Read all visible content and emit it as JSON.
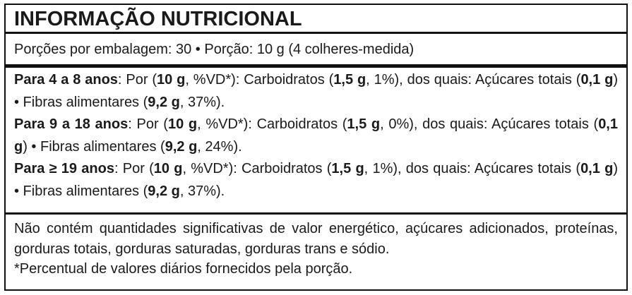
{
  "title": "INFORMAÇÃO NUTRICIONAL",
  "serving": "Porções por embalagem: 30 • Porção: 10 g (4 colheres-medida)",
  "groups": [
    {
      "segments": [
        {
          "text": "Para 4 a 8 anos",
          "bold": true
        },
        {
          "text": ": Por (",
          "bold": false
        },
        {
          "text": "10 g",
          "bold": true
        },
        {
          "text": ", %VD*): Carboidratos (",
          "bold": false
        },
        {
          "text": "1,5 g",
          "bold": true
        },
        {
          "text": ", 1%), dos quais: Açúcares totais (",
          "bold": false
        },
        {
          "text": "0,1 g",
          "bold": true
        },
        {
          "text": ") • Fibras alimentares (",
          "bold": false
        },
        {
          "text": "9,2 g",
          "bold": true
        },
        {
          "text": ", 37%).",
          "bold": false
        }
      ]
    },
    {
      "segments": [
        {
          "text": "Para 9 a 18 anos",
          "bold": true
        },
        {
          "text": ": Por (",
          "bold": false
        },
        {
          "text": "10 g",
          "bold": true
        },
        {
          "text": ", %VD*): Carboidratos (",
          "bold": false
        },
        {
          "text": "1,5 g",
          "bold": true
        },
        {
          "text": ", 0%), dos quais: Açúcares totais (",
          "bold": false
        },
        {
          "text": "0,1 g",
          "bold": true
        },
        {
          "text": ") • Fibras alimentares (",
          "bold": false
        },
        {
          "text": "9,2 g",
          "bold": true
        },
        {
          "text": ", 24%).",
          "bold": false
        }
      ]
    },
    {
      "segments": [
        {
          "text": "Para ≥ 19 anos",
          "bold": true
        },
        {
          "text": ": Por (",
          "bold": false
        },
        {
          "text": "10 g",
          "bold": true
        },
        {
          "text": ", %VD*): Carboidratos (",
          "bold": false
        },
        {
          "text": "1,5 g",
          "bold": true
        },
        {
          "text": ", 1%), dos quais: Açúcares totais (",
          "bold": false
        },
        {
          "text": "0,1 g",
          "bold": true
        },
        {
          "text": ") • Fibras alimentares (",
          "bold": false
        },
        {
          "text": "9,2 g",
          "bold": true
        },
        {
          "text": ", 37%).",
          "bold": false
        }
      ]
    }
  ],
  "footer": {
    "statement": "Não contém quantidades significativas de valor energético, açúcares adicionados, proteínas, gorduras totais, gorduras saturadas, gorduras trans e sódio.",
    "note": "*Percentual de valores diários fornecidos pela porção."
  }
}
